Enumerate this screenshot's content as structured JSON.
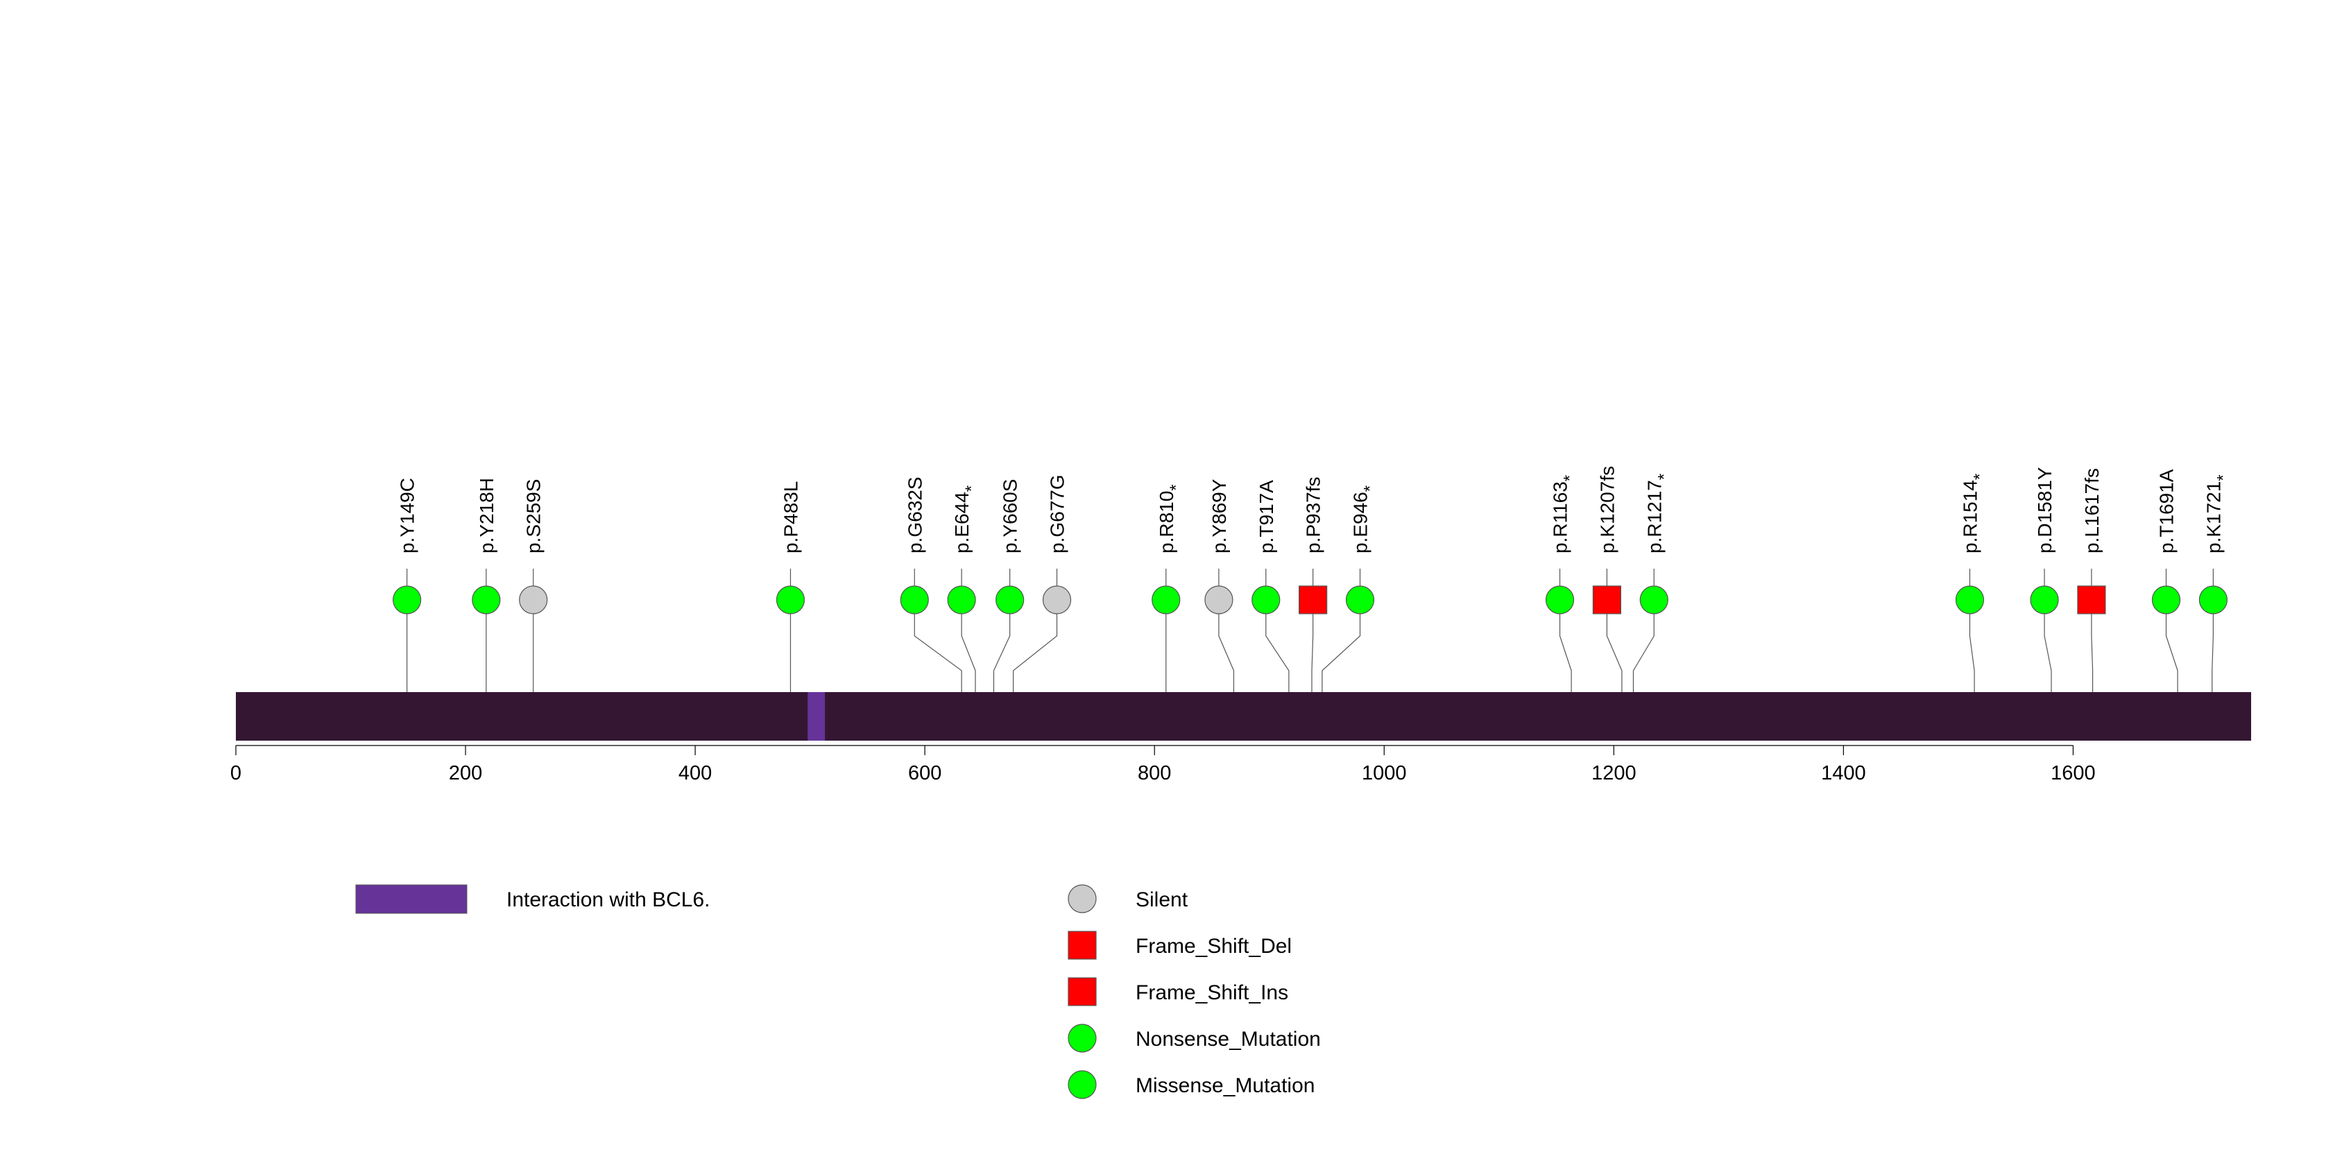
{
  "chart_data": {
    "type": "lollipop",
    "title": "",
    "xlabel": "",
    "ylabel": "",
    "xlim": [
      0,
      1755
    ],
    "x_ticks": [
      {
        "value": 0,
        "label": "0"
      },
      {
        "value": 200,
        "label": "200"
      },
      {
        "value": 400,
        "label": "400"
      },
      {
        "value": 600,
        "label": "600"
      },
      {
        "value": 800,
        "label": "800"
      },
      {
        "value": 1000,
        "label": "1000"
      },
      {
        "value": 1200,
        "label": "1200"
      },
      {
        "value": 1400,
        "label": "1400"
      },
      {
        "value": 1600,
        "label": "1600"
      }
    ],
    "protein": {
      "start": 0,
      "end": 1755,
      "color": "#341633"
    },
    "domains": [
      {
        "name": "Interaction with BCL6.",
        "start": 498,
        "end": 513,
        "color": "#663399"
      }
    ],
    "mutations": [
      {
        "label": "p.Y149C",
        "label_main": "p.Y149C",
        "label_star": "",
        "position": 149,
        "display": 149,
        "type": "Missense_Mutation"
      },
      {
        "label": "p.Y218H",
        "label_main": "p.Y218H",
        "label_star": "",
        "position": 218,
        "display": 218,
        "type": "Missense_Mutation"
      },
      {
        "label": "p.S259S",
        "label_main": "p.S259S",
        "label_star": "",
        "position": 259,
        "display": 259,
        "type": "Silent"
      },
      {
        "label": "p.P483L",
        "label_main": "p.P483L",
        "label_star": "",
        "position": 483,
        "display": 483,
        "type": "Missense_Mutation"
      },
      {
        "label": "p.G632S",
        "label_main": "p.G632S",
        "label_star": "",
        "position": 632,
        "display": 591,
        "type": "Missense_Mutation"
      },
      {
        "label": "p.E644*",
        "label_main": "p.E644",
        "label_star": "*",
        "position": 644,
        "display": 632,
        "type": "Nonsense_Mutation"
      },
      {
        "label": "p.Y660S",
        "label_main": "p.Y660S",
        "label_star": "",
        "position": 660,
        "display": 674,
        "type": "Missense_Mutation"
      },
      {
        "label": "p.G677G",
        "label_main": "p.G677G",
        "label_star": "",
        "position": 677,
        "display": 715,
        "type": "Silent"
      },
      {
        "label": "p.R810*",
        "label_main": "p.R810",
        "label_star": "*",
        "position": 810,
        "display": 810,
        "type": "Nonsense_Mutation"
      },
      {
        "label": "p.Y869Y",
        "label_main": "p.Y869Y",
        "label_star": "",
        "position": 869,
        "display": 856,
        "type": "Silent"
      },
      {
        "label": "p.T917A",
        "label_main": "p.T917A",
        "label_star": "",
        "position": 917,
        "display": 897,
        "type": "Missense_Mutation"
      },
      {
        "label": "p.P937fs",
        "label_main": "p.P937fs",
        "label_star": "",
        "position": 937,
        "display": 938,
        "type": "Frame_Shift_Del"
      },
      {
        "label": "p.E946*",
        "label_main": "p.E946",
        "label_star": "*",
        "position": 946,
        "display": 979,
        "type": "Nonsense_Mutation"
      },
      {
        "label": "p.R1163*",
        "label_main": "p.R1163",
        "label_star": "*",
        "position": 1163,
        "display": 1153,
        "type": "Nonsense_Mutation"
      },
      {
        "label": "p.K1207fs",
        "label_main": "p.K1207fs",
        "label_star": "",
        "position": 1207,
        "display": 1194,
        "type": "Frame_Shift_Del"
      },
      {
        "label": "p.R1217*",
        "label_main": "p.R1217",
        "label_star": "*",
        "position": 1217,
        "display": 1235,
        "type": "Nonsense_Mutation"
      },
      {
        "label": "p.R1514*",
        "label_main": "p.R1514",
        "label_star": "*",
        "position": 1514,
        "display": 1510,
        "type": "Nonsense_Mutation"
      },
      {
        "label": "p.D1581Y",
        "label_main": "p.D1581Y",
        "label_star": "",
        "position": 1581,
        "display": 1575,
        "type": "Missense_Mutation"
      },
      {
        "label": "p.L1617fs",
        "label_main": "p.L1617fs",
        "label_star": "",
        "position": 1617,
        "display": 1616,
        "type": "Frame_Shift_Del"
      },
      {
        "label": "p.T1691A",
        "label_main": "p.T1691A",
        "label_star": "",
        "position": 1691,
        "display": 1681,
        "type": "Missense_Mutation"
      },
      {
        "label": "p.K1721*",
        "label_main": "p.K1721",
        "label_star": "*",
        "position": 1721,
        "display": 1722,
        "type": "Nonsense_Mutation"
      }
    ],
    "mutation_styles": {
      "Silent": {
        "shape": "circle",
        "color": "#cccccc"
      },
      "Frame_Shift_Del": {
        "shape": "square",
        "color": "#ff0000"
      },
      "Frame_Shift_Ins": {
        "shape": "square",
        "color": "#ff0000"
      },
      "Nonsense_Mutation": {
        "shape": "circle",
        "color": "#00ff00"
      },
      "Missense_Mutation": {
        "shape": "circle",
        "color": "#00ff00"
      }
    },
    "legend_domains": [
      {
        "label": "Interaction with BCL6.",
        "color": "#663399"
      }
    ],
    "legend_mutations": [
      {
        "label": "Silent",
        "type": "Silent"
      },
      {
        "label": "Frame_Shift_Del",
        "type": "Frame_Shift_Del"
      },
      {
        "label": "Frame_Shift_Ins",
        "type": "Frame_Shift_Ins"
      },
      {
        "label": "Nonsense_Mutation",
        "type": "Nonsense_Mutation"
      },
      {
        "label": "Missense_Mutation",
        "type": "Missense_Mutation"
      }
    ]
  }
}
